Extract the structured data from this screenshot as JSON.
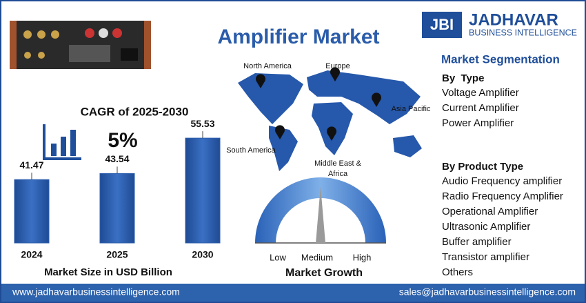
{
  "header": {
    "title": "Amplifier Market",
    "logo": {
      "mark": "JBI",
      "name": "JADHAVAR",
      "tagline": "BUSINESS INTELLIGENCE"
    }
  },
  "chart_data": {
    "type": "bar",
    "title": "CAGR of 2025-2030",
    "annotation": "5%",
    "xlabel": "Market Size in USD Billion",
    "categories": [
      "2024",
      "2025",
      "2030"
    ],
    "values": [
      41.47,
      43.54,
      55.53
    ],
    "color": "#2e5fae",
    "ylim": [
      20,
      60
    ]
  },
  "map": {
    "regions": [
      {
        "lines": [
          "North America"
        ]
      },
      {
        "lines": [
          "Europe"
        ]
      },
      {
        "lines": [
          "Asia Pacific"
        ]
      },
      {
        "lines": [
          "South America"
        ]
      },
      {
        "lines": [
          "Middle East &",
          "Africa"
        ]
      }
    ]
  },
  "gauge": {
    "title": "Market Growth",
    "labels": [
      "Low",
      "Medium",
      "High"
    ]
  },
  "segmentation": {
    "title": "Market Segmentation",
    "groups": [
      {
        "heading": "By  Type",
        "items": [
          "Voltage Amplifier",
          "Current Amplifier",
          "Power Amplifier"
        ]
      },
      {
        "heading": "By Product Type",
        "items": [
          "Audio Frequency amplifier",
          "Radio Frequency Amplifier",
          "Operational Amplifier",
          "Ultrasonic Amplifier",
          "Buffer amplifier",
          "Transistor amplifier",
          "Others"
        ]
      }
    ]
  },
  "footer": {
    "website": "www.jadhavarbusinessintelligence.com",
    "email": "sales@jadhavarbusinessintelligence.com"
  }
}
